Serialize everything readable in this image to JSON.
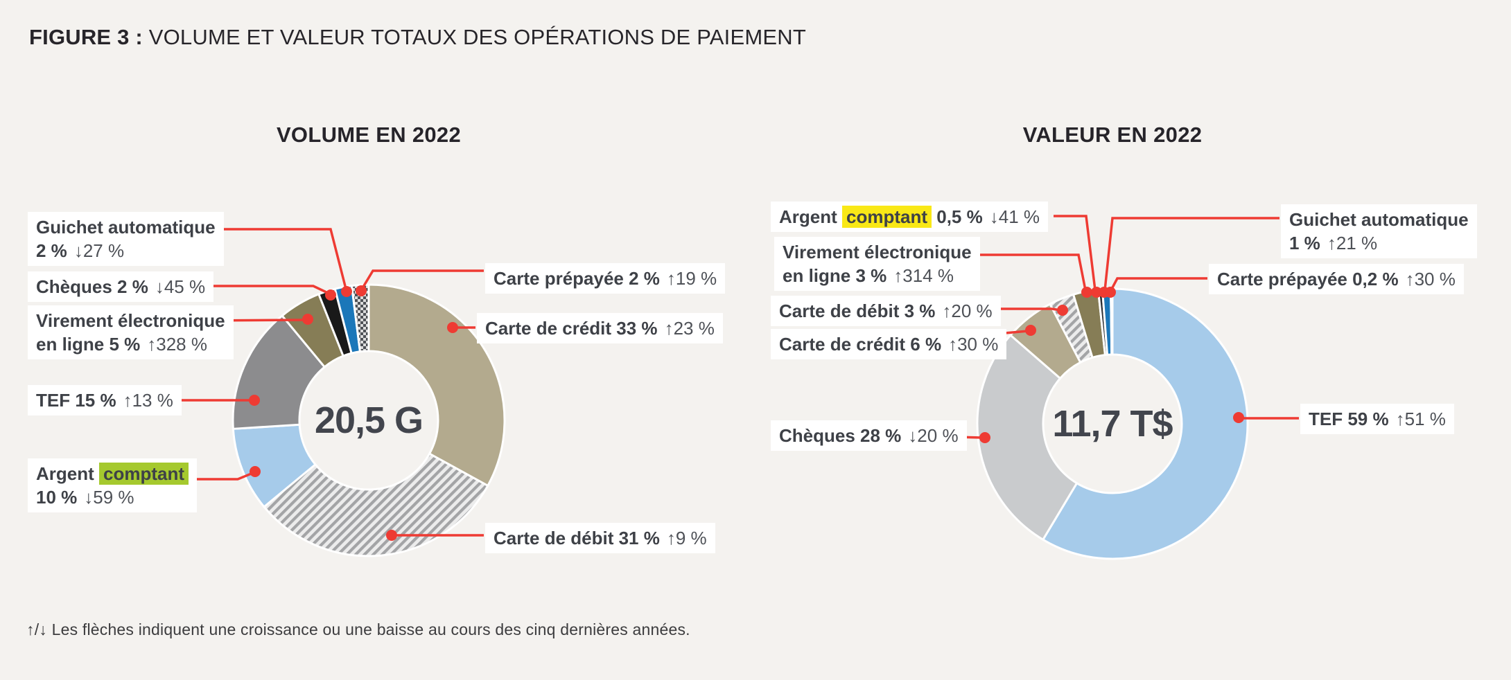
{
  "figure": {
    "label": "FIGURE 3 :",
    "title": "VOLUME ET VALEUR TOTAUX DES OPÉRATIONS DE PAIEMENT"
  },
  "footnote": "↑/↓ Les flèches indiquent une croissance ou une baisse au cours des cinq dernières années.",
  "colors": {
    "background": "#f4f2ef",
    "label_background": "#ffffff",
    "text_dark": "#3e4147",
    "text_change": "#4e5157",
    "leader_red": "#ee3b33",
    "highlight_green": "#a5c92e",
    "highlight_yellow": "#f9e816",
    "slice_gap": "#ffffff",
    "fills": {
      "tan": "#b3aa8e",
      "lightblue": "#a6cbea",
      "gray": "#8c8c8e",
      "olive": "#867d56",
      "black": "#191919",
      "blue": "#1b77b9",
      "lightgray": "#c9cbcd",
      "dark": "#2b2e33",
      "hatch_stripe": "#a3a4a6",
      "hatch_bg": "#ececec",
      "checker_dark": "#4e5156",
      "checker_light": "#dcdcdc"
    }
  },
  "chart_data": [
    {
      "type": "donut",
      "id": "volume",
      "title": "VOLUME EN 2022",
      "center_value": "20,5 G",
      "slices": [
        {
          "name": "Carte de crédit",
          "value": 33,
          "share": "33 %",
          "change": "↑23 %",
          "direction": "up",
          "fill": "tan",
          "label_lines": [
            [
              {
                "t": "Carte de crédit 33 %",
                "b": 1
              },
              {
                "t": "↑23 %",
                "b": 0
              }
            ]
          ]
        },
        {
          "name": "Carte de débit",
          "value": 31,
          "share": "31 %",
          "change": "↑9 %",
          "direction": "up",
          "fill": "hatch",
          "label_lines": [
            [
              {
                "t": "Carte de débit 31 %",
                "b": 1
              },
              {
                "t": "↑9 %",
                "b": 0
              }
            ]
          ]
        },
        {
          "name": "Argent comptant",
          "value": 10,
          "share": "10 %",
          "change": "↓59 %",
          "direction": "down",
          "fill": "lightblue",
          "label_lines": [
            [
              {
                "t": "Argent",
                "b": 1
              },
              {
                "t": "comptant",
                "b": 1,
                "hl": "green"
              }
            ],
            [
              {
                "t": "10 %",
                "b": 1
              },
              {
                "t": "↓59 %",
                "b": 0
              }
            ]
          ]
        },
        {
          "name": "TEF",
          "value": 15,
          "share": "15 %",
          "change": "↑13 %",
          "direction": "up",
          "fill": "gray",
          "label_lines": [
            [
              {
                "t": "TEF 15 %",
                "b": 1
              },
              {
                "t": "↑13 %",
                "b": 0
              }
            ]
          ]
        },
        {
          "name": "Virement électronique en ligne",
          "value": 5,
          "share": "5 %",
          "change": "↑328 %",
          "direction": "up",
          "fill": "olive",
          "label_lines": [
            [
              {
                "t": "Virement électronique",
                "b": 1
              }
            ],
            [
              {
                "t": "en ligne 5 %",
                "b": 1
              },
              {
                "t": "↑328 %",
                "b": 0
              }
            ]
          ]
        },
        {
          "name": "Chèques",
          "value": 2,
          "share": "2 %",
          "change": "↓45 %",
          "direction": "down",
          "fill": "black",
          "label_lines": [
            [
              {
                "t": "Chèques 2 %",
                "b": 1
              },
              {
                "t": "↓45 %",
                "b": 0
              }
            ]
          ]
        },
        {
          "name": "Guichet automatique",
          "value": 2,
          "share": "2 %",
          "change": "↓27 %",
          "direction": "down",
          "fill": "blue",
          "label_lines": [
            [
              {
                "t": "Guichet automatique",
                "b": 1
              }
            ],
            [
              {
                "t": "2 %",
                "b": 1
              },
              {
                "t": "↓27 %",
                "b": 0
              }
            ]
          ]
        },
        {
          "name": "Carte prépayée",
          "value": 2,
          "share": "2 %",
          "change": "↑19 %",
          "direction": "up",
          "fill": "checker",
          "label_lines": [
            [
              {
                "t": "Carte prépayée 2 %",
                "b": 1
              },
              {
                "t": "↑19 %",
                "b": 0
              }
            ]
          ]
        }
      ]
    },
    {
      "type": "donut",
      "id": "valeur",
      "title": "VALEUR EN 2022",
      "center_value": "11,7 T$",
      "slices": [
        {
          "name": "TEF",
          "value": 59,
          "share": "59 %",
          "change": "↑51 %",
          "direction": "up",
          "fill": "lightblue",
          "label_lines": [
            [
              {
                "t": "TEF 59 %",
                "b": 1
              },
              {
                "t": "↑51 %",
                "b": 0
              }
            ]
          ]
        },
        {
          "name": "Chèques",
          "value": 28,
          "share": "28 %",
          "change": "↓20 %",
          "direction": "down",
          "fill": "lightgray",
          "label_lines": [
            [
              {
                "t": "Chèques 28 %",
                "b": 1
              },
              {
                "t": "↓20 %",
                "b": 0
              }
            ]
          ]
        },
        {
          "name": "Carte de crédit",
          "value": 6,
          "share": "6 %",
          "change": "↑30 %",
          "direction": "up",
          "fill": "tan",
          "label_lines": [
            [
              {
                "t": "Carte de crédit 6 %",
                "b": 1
              },
              {
                "t": "↑30 %",
                "b": 0
              }
            ]
          ]
        },
        {
          "name": "Carte de débit",
          "value": 3,
          "share": "3 %",
          "change": "↑20 %",
          "direction": "up",
          "fill": "hatch",
          "label_lines": [
            [
              {
                "t": "Carte de débit 3 %",
                "b": 1
              },
              {
                "t": "↑20 %",
                "b": 0
              }
            ]
          ]
        },
        {
          "name": "Virement électronique en ligne",
          "value": 3,
          "share": "3 %",
          "change": "↑314 %",
          "direction": "up",
          "fill": "olive",
          "label_lines": [
            [
              {
                "t": "Virement électronique",
                "b": 1
              }
            ],
            [
              {
                "t": "en ligne 3 %",
                "b": 1
              },
              {
                "t": "↑314 %",
                "b": 0
              }
            ]
          ]
        },
        {
          "name": "Argent comptant",
          "value": 0.5,
          "share": "0,5 %",
          "change": "↓41 %",
          "direction": "down",
          "fill": "dark",
          "label_lines": [
            [
              {
                "t": "Argent",
                "b": 1
              },
              {
                "t": "comptant",
                "b": 1,
                "hl": "yellow"
              },
              {
                "t": "0,5 %",
                "b": 1
              },
              {
                "t": "↓41 %",
                "b": 0
              }
            ]
          ]
        },
        {
          "name": "Guichet automatique",
          "value": 1,
          "share": "1 %",
          "change": "↑21 %",
          "direction": "up",
          "fill": "blue",
          "label_lines": [
            [
              {
                "t": "Guichet automatique",
                "b": 1
              }
            ],
            [
              {
                "t": "1 %",
                "b": 1
              },
              {
                "t": "↑21 %",
                "b": 0
              }
            ]
          ]
        },
        {
          "name": "Carte prépayée",
          "value": 0.2,
          "share": "0,2 %",
          "change": "↑30 %",
          "direction": "up",
          "fill": "checker",
          "label_lines": [
            [
              {
                "t": "Carte prépayée 0,2 %",
                "b": 1
              },
              {
                "t": "↑30 %",
                "b": 0
              }
            ]
          ]
        }
      ]
    }
  ]
}
